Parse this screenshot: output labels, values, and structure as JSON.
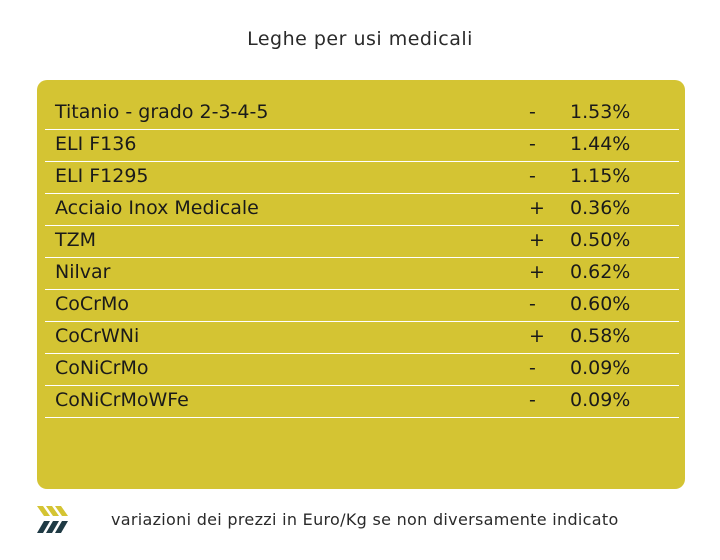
{
  "header": {
    "title": "Leghe per usi medicali"
  },
  "table": {
    "rows": [
      {
        "name": "Titanio - grado 2-3-4-5",
        "sign": "-",
        "change": "1.53%"
      },
      {
        "name": "ELI F136",
        "sign": "-",
        "change": "1.44%"
      },
      {
        "name": "ELI F1295",
        "sign": "-",
        "change": "1.15%"
      },
      {
        "name": "Acciaio Inox Medicale",
        "sign": "+",
        "change": "0.36%"
      },
      {
        "name": "TZM",
        "sign": "+",
        "change": "0.50%"
      },
      {
        "name": "Nilvar",
        "sign": "+",
        "change": "0.62%"
      },
      {
        "name": "CoCrMo",
        "sign": "-",
        "change": "0.60%"
      },
      {
        "name": "CoCrWNi",
        "sign": "+",
        "change": "0.58%"
      },
      {
        "name": "CoNiCrMo",
        "sign": "-",
        "change": "0.09%"
      },
      {
        "name": "CoNiCrMoWFe",
        "sign": "-",
        "change": "0.09%"
      }
    ]
  },
  "footer": {
    "note": "variazioni dei prezzi in Euro/Kg se non diversamente indicato",
    "logo_icon": "chevrons-logo-icon"
  },
  "colors": {
    "panel": "#d4c433",
    "logo_yellow": "#d4c433",
    "logo_dark": "#1f3a44"
  }
}
